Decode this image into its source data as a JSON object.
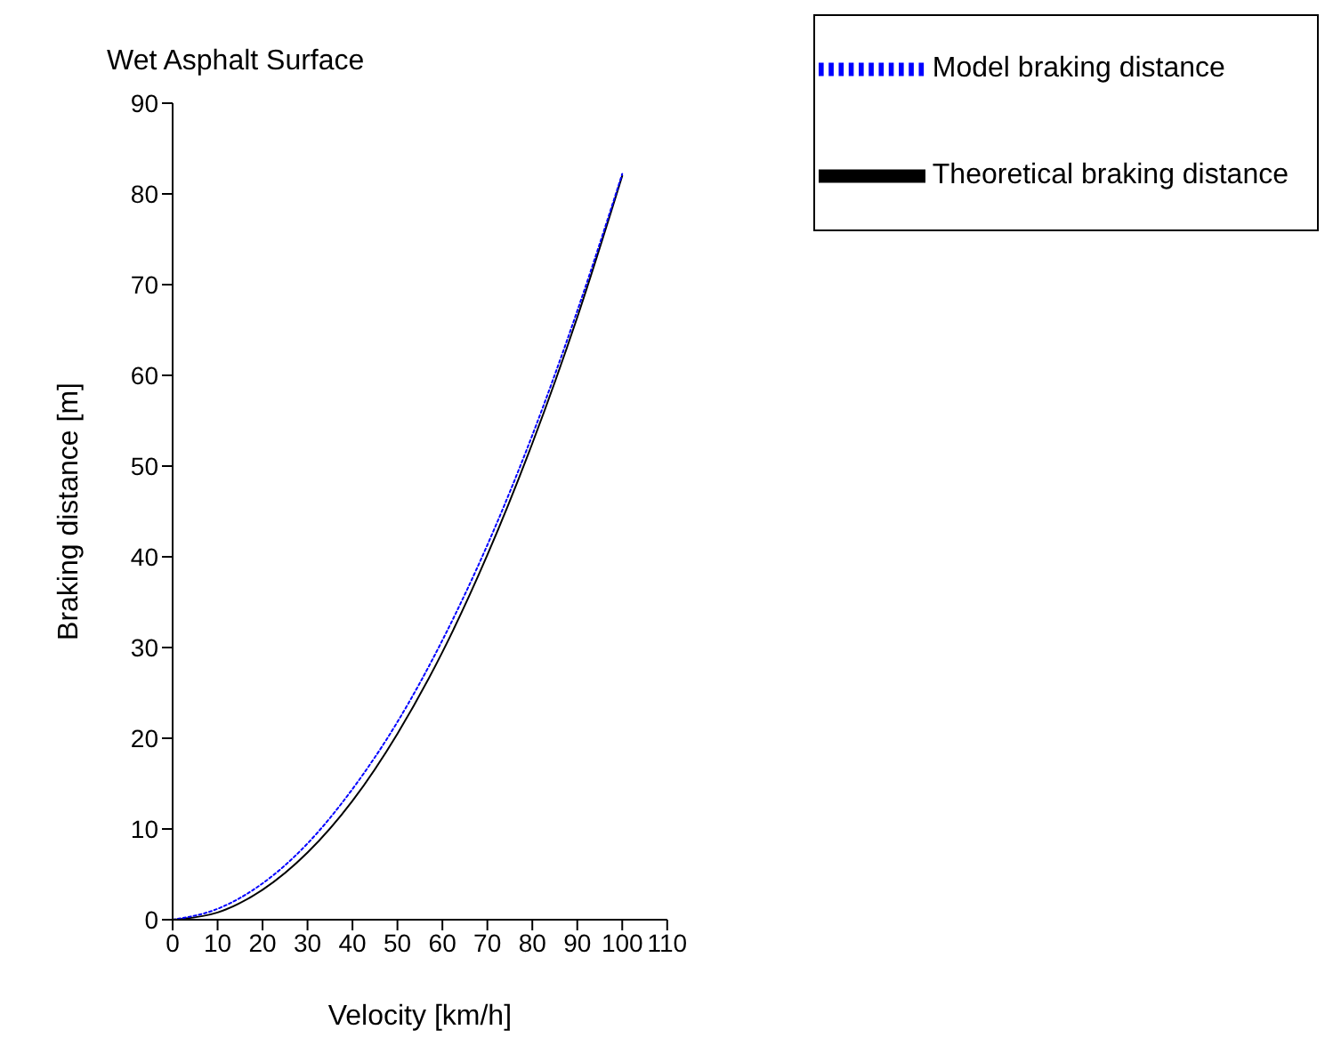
{
  "chart_data": {
    "type": "line",
    "title": "Wet Asphalt Surface",
    "xlabel": "Velocity [km/h]",
    "ylabel": "Braking distance [m]",
    "x": [
      0,
      10,
      20,
      30,
      40,
      50,
      60,
      70,
      80,
      90,
      100
    ],
    "series": [
      {
        "name": "Theoretical braking distance",
        "color": "#000000",
        "line_style": "solid",
        "values": [
          0,
          0.8,
          3.3,
          7.4,
          13.1,
          20.5,
          29.5,
          40.2,
          52.5,
          66.4,
          82
        ]
      },
      {
        "name": "Model braking distance",
        "color": "#0000ff",
        "line_style": "dotted",
        "values": [
          0,
          1.2,
          4.0,
          8.4,
          14.4,
          21.8,
          30.8,
          41.3,
          53.4,
          67.1,
          82.2
        ]
      }
    ],
    "xlim": [
      0,
      110
    ],
    "xticks": [
      0,
      10,
      20,
      30,
      40,
      50,
      60,
      70,
      80,
      90,
      100,
      110
    ],
    "ylim": [
      0,
      90
    ],
    "yticks": [
      0,
      10,
      20,
      30,
      40,
      50,
      60,
      70,
      80,
      90
    ],
    "grid": false,
    "legend": "top right",
    "marker": "none"
  }
}
